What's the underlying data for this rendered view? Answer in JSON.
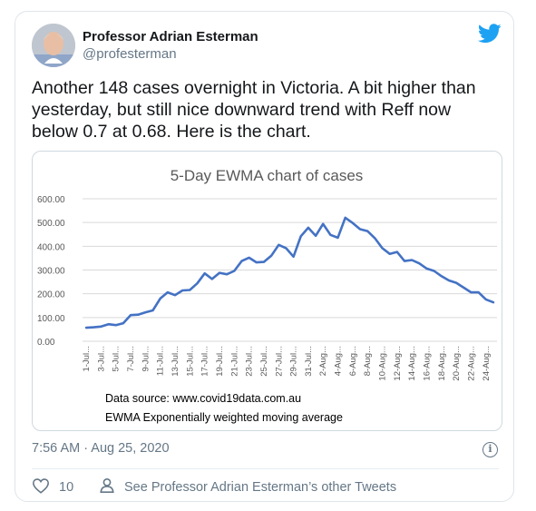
{
  "author": {
    "name": "Professor Adrian Esterman",
    "handle": "@profesterman"
  },
  "tweet": {
    "text": "Another 148 cases overnight in Victoria. A bit higher than yesterday, but still nice downward trend with Reff now below 0.7 at 0.68. Here is the chart."
  },
  "colors": {
    "twitter_blue": "#1da1f2",
    "line": "#4472c4",
    "muted": "#657786"
  },
  "icons": {
    "brand": "twitter-bird-icon",
    "info": "info-icon",
    "like": "heart-icon",
    "profile": "person-icon"
  },
  "chart_data": {
    "type": "line",
    "title": "5-Day EWMA chart of cases",
    "ylim": [
      0,
      600
    ],
    "yticks": [
      "600.00",
      "500.00",
      "400.00",
      "300.00",
      "200.00",
      "100.00",
      "0.00"
    ],
    "xticks": [
      "1-Jul...",
      "3-Jul...",
      "5-Jul...",
      "7-Jul...",
      "9-Jul...",
      "11-Jul...",
      "13-Jul...",
      "15-Jul...",
      "17-Jul...",
      "19-Jul...",
      "21-Jul...",
      "23-Jul...",
      "25-Jul...",
      "27-Jul...",
      "29-Jul...",
      "31-Jul...",
      "2-Aug...",
      "4-Aug...",
      "6-Aug...",
      "8-Aug...",
      "10-Aug...",
      "12-Aug...",
      "14-Aug...",
      "16-Aug...",
      "18-Aug...",
      "20-Aug...",
      "22-Aug...",
      "24-Aug..."
    ],
    "series": [
      {
        "values": [
          57,
          59,
          62,
          72,
          68,
          76,
          110,
          112,
          122,
          130,
          180,
          206,
          194,
          214,
          216,
          244,
          286,
          262,
          288,
          282,
          296,
          338,
          352,
          332,
          334,
          360,
          406,
          392,
          356,
          442,
          478,
          444,
          494,
          448,
          436,
          520,
          498,
          472,
          464,
          434,
          392,
          368,
          376,
          338,
          342,
          328,
          306,
          296,
          274,
          256,
          246,
          226,
          206,
          206,
          176,
          164
        ]
      }
    ],
    "annotations": [
      "Data source: www.covid19data.com.au",
      "EWMA Exponentially weighted moving average"
    ],
    "grid": true
  },
  "footer": {
    "timestamp": "7:56 AM · Aug 25, 2020",
    "likes": "10",
    "other_tweets": "See Professor Adrian Esterman’s other Tweets"
  }
}
